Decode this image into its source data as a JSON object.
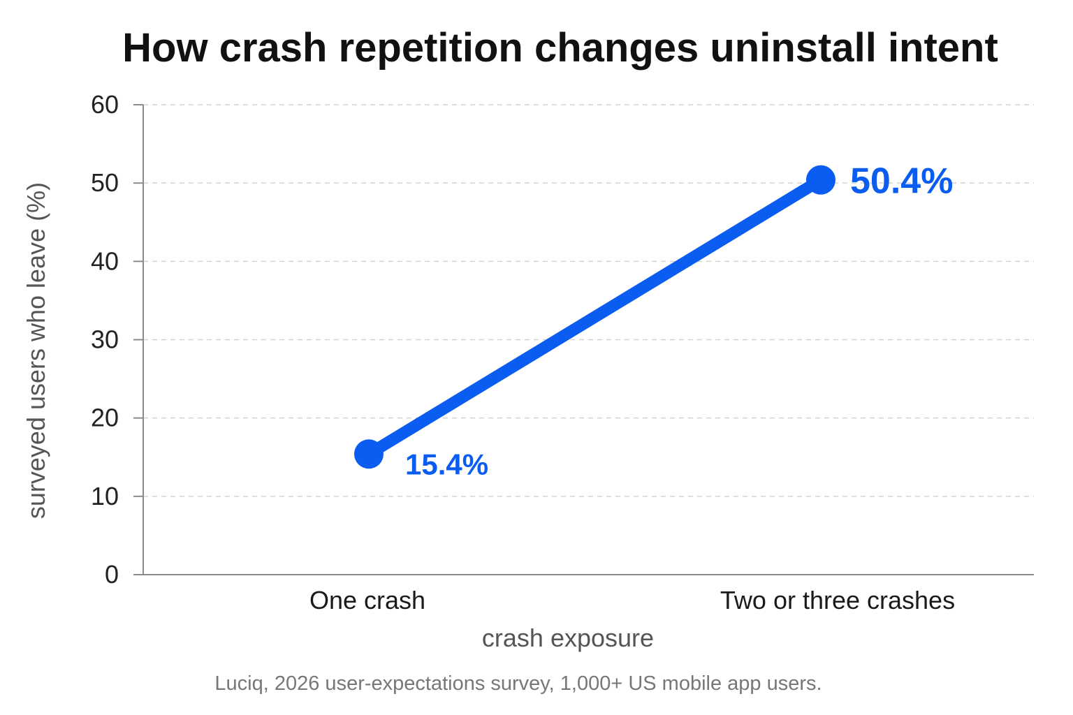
{
  "chart_data": {
    "type": "line",
    "title": "How crash repetition changes uninstall intent",
    "xlabel": "crash exposure",
    "ylabel": "surveyed users who leave (%)",
    "categories": [
      "One crash",
      "Two or three crashes"
    ],
    "series": [
      {
        "values": [
          15.4,
          50.4
        ],
        "data_labels": [
          "15.4%",
          "50.4%"
        ],
        "color": "#0b5cf0"
      }
    ],
    "ylim": [
      0,
      60
    ],
    "yticks": [
      0,
      10,
      20,
      30,
      40,
      50,
      60
    ],
    "ytick_labels": [
      "0",
      "10",
      "20",
      "30",
      "40",
      "50",
      "60"
    ],
    "grid": true,
    "legend": "none",
    "source": "Luciq, 2026 user-expectations survey, 1,000+ US mobile app users."
  }
}
